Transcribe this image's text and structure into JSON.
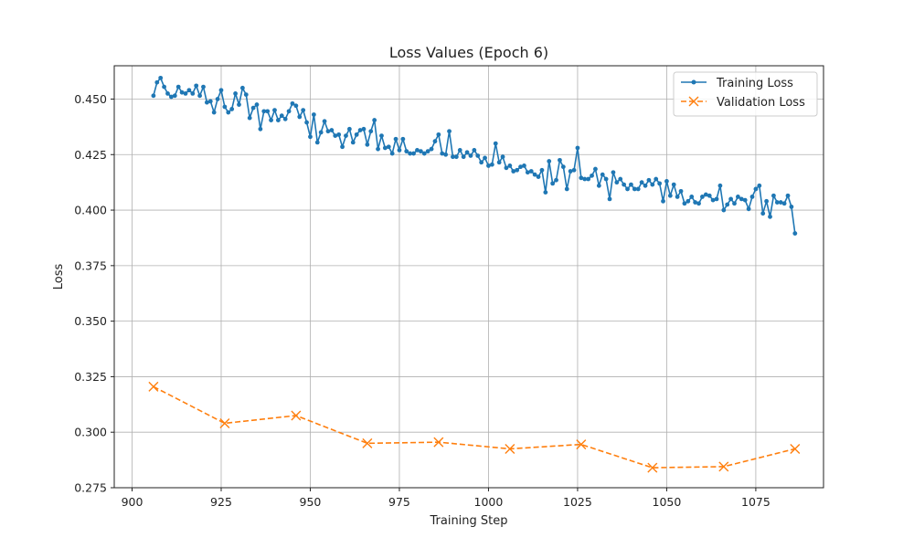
{
  "chart_data": {
    "type": "line",
    "title": "Loss Values (Epoch 6)",
    "xlabel": "Training Step",
    "ylabel": "Loss",
    "xlim": [
      895,
      1094
    ],
    "ylim": [
      0.275,
      0.465
    ],
    "xticks": [
      900,
      925,
      950,
      975,
      1000,
      1025,
      1050,
      1075
    ],
    "yticks": [
      0.275,
      0.3,
      0.325,
      0.35,
      0.375,
      0.4,
      0.425,
      0.45
    ],
    "grid": true,
    "legend_position": "top-right",
    "series": [
      {
        "name": "Training Loss",
        "color": "#1f77b4",
        "style": "solid",
        "marker": "dot",
        "start_x": 906,
        "step": 1,
        "values": [
          0.4515,
          0.4575,
          0.4595,
          0.4555,
          0.4525,
          0.451,
          0.4515,
          0.4555,
          0.453,
          0.4525,
          0.454,
          0.4525,
          0.456,
          0.4515,
          0.4555,
          0.4485,
          0.449,
          0.444,
          0.45,
          0.454,
          0.4465,
          0.444,
          0.4455,
          0.4525,
          0.4475,
          0.455,
          0.452,
          0.4415,
          0.446,
          0.4475,
          0.4365,
          0.4445,
          0.4445,
          0.4405,
          0.445,
          0.4405,
          0.4425,
          0.441,
          0.4445,
          0.448,
          0.447,
          0.442,
          0.445,
          0.4395,
          0.433,
          0.443,
          0.4305,
          0.435,
          0.44,
          0.4355,
          0.436,
          0.4335,
          0.434,
          0.4285,
          0.4335,
          0.4365,
          0.4305,
          0.434,
          0.436,
          0.4365,
          0.4295,
          0.4355,
          0.4405,
          0.4275,
          0.4335,
          0.428,
          0.4285,
          0.4255,
          0.432,
          0.427,
          0.432,
          0.4265,
          0.4255,
          0.4255,
          0.427,
          0.4265,
          0.4255,
          0.4265,
          0.4275,
          0.431,
          0.434,
          0.4255,
          0.425,
          0.4355,
          0.424,
          0.424,
          0.427,
          0.424,
          0.426,
          0.4245,
          0.427,
          0.4245,
          0.4215,
          0.4235,
          0.42,
          0.4205,
          0.43,
          0.4215,
          0.424,
          0.419,
          0.42,
          0.4175,
          0.418,
          0.4195,
          0.42,
          0.417,
          0.4175,
          0.416,
          0.415,
          0.418,
          0.408,
          0.422,
          0.412,
          0.4135,
          0.4225,
          0.4195,
          0.4095,
          0.4175,
          0.418,
          0.428,
          0.4145,
          0.414,
          0.414,
          0.4155,
          0.4185,
          0.411,
          0.416,
          0.414,
          0.405,
          0.417,
          0.4125,
          0.414,
          0.4115,
          0.4095,
          0.4115,
          0.4095,
          0.4095,
          0.4125,
          0.411,
          0.4135,
          0.4115,
          0.414,
          0.412,
          0.404,
          0.413,
          0.4065,
          0.4115,
          0.406,
          0.4085,
          0.403,
          0.404,
          0.406,
          0.4035,
          0.403,
          0.406,
          0.407,
          0.4065,
          0.4045,
          0.405,
          0.411,
          0.4,
          0.4025,
          0.405,
          0.403,
          0.406,
          0.405,
          0.4045,
          0.4005,
          0.406,
          0.4095,
          0.411,
          0.3985,
          0.404,
          0.397,
          0.4065,
          0.4035,
          0.4035,
          0.403,
          0.4065,
          0.4015,
          0.3895
        ]
      },
      {
        "name": "Validation Loss",
        "color": "#ff7f0e",
        "style": "dashed",
        "marker": "x",
        "x": [
          906,
          926,
          946,
          966,
          986,
          1006,
          1026,
          1046,
          1066,
          1086
        ],
        "values": [
          0.3205,
          0.304,
          0.3075,
          0.295,
          0.2955,
          0.2925,
          0.2945,
          0.284,
          0.2845,
          0.2925
        ]
      }
    ]
  }
}
